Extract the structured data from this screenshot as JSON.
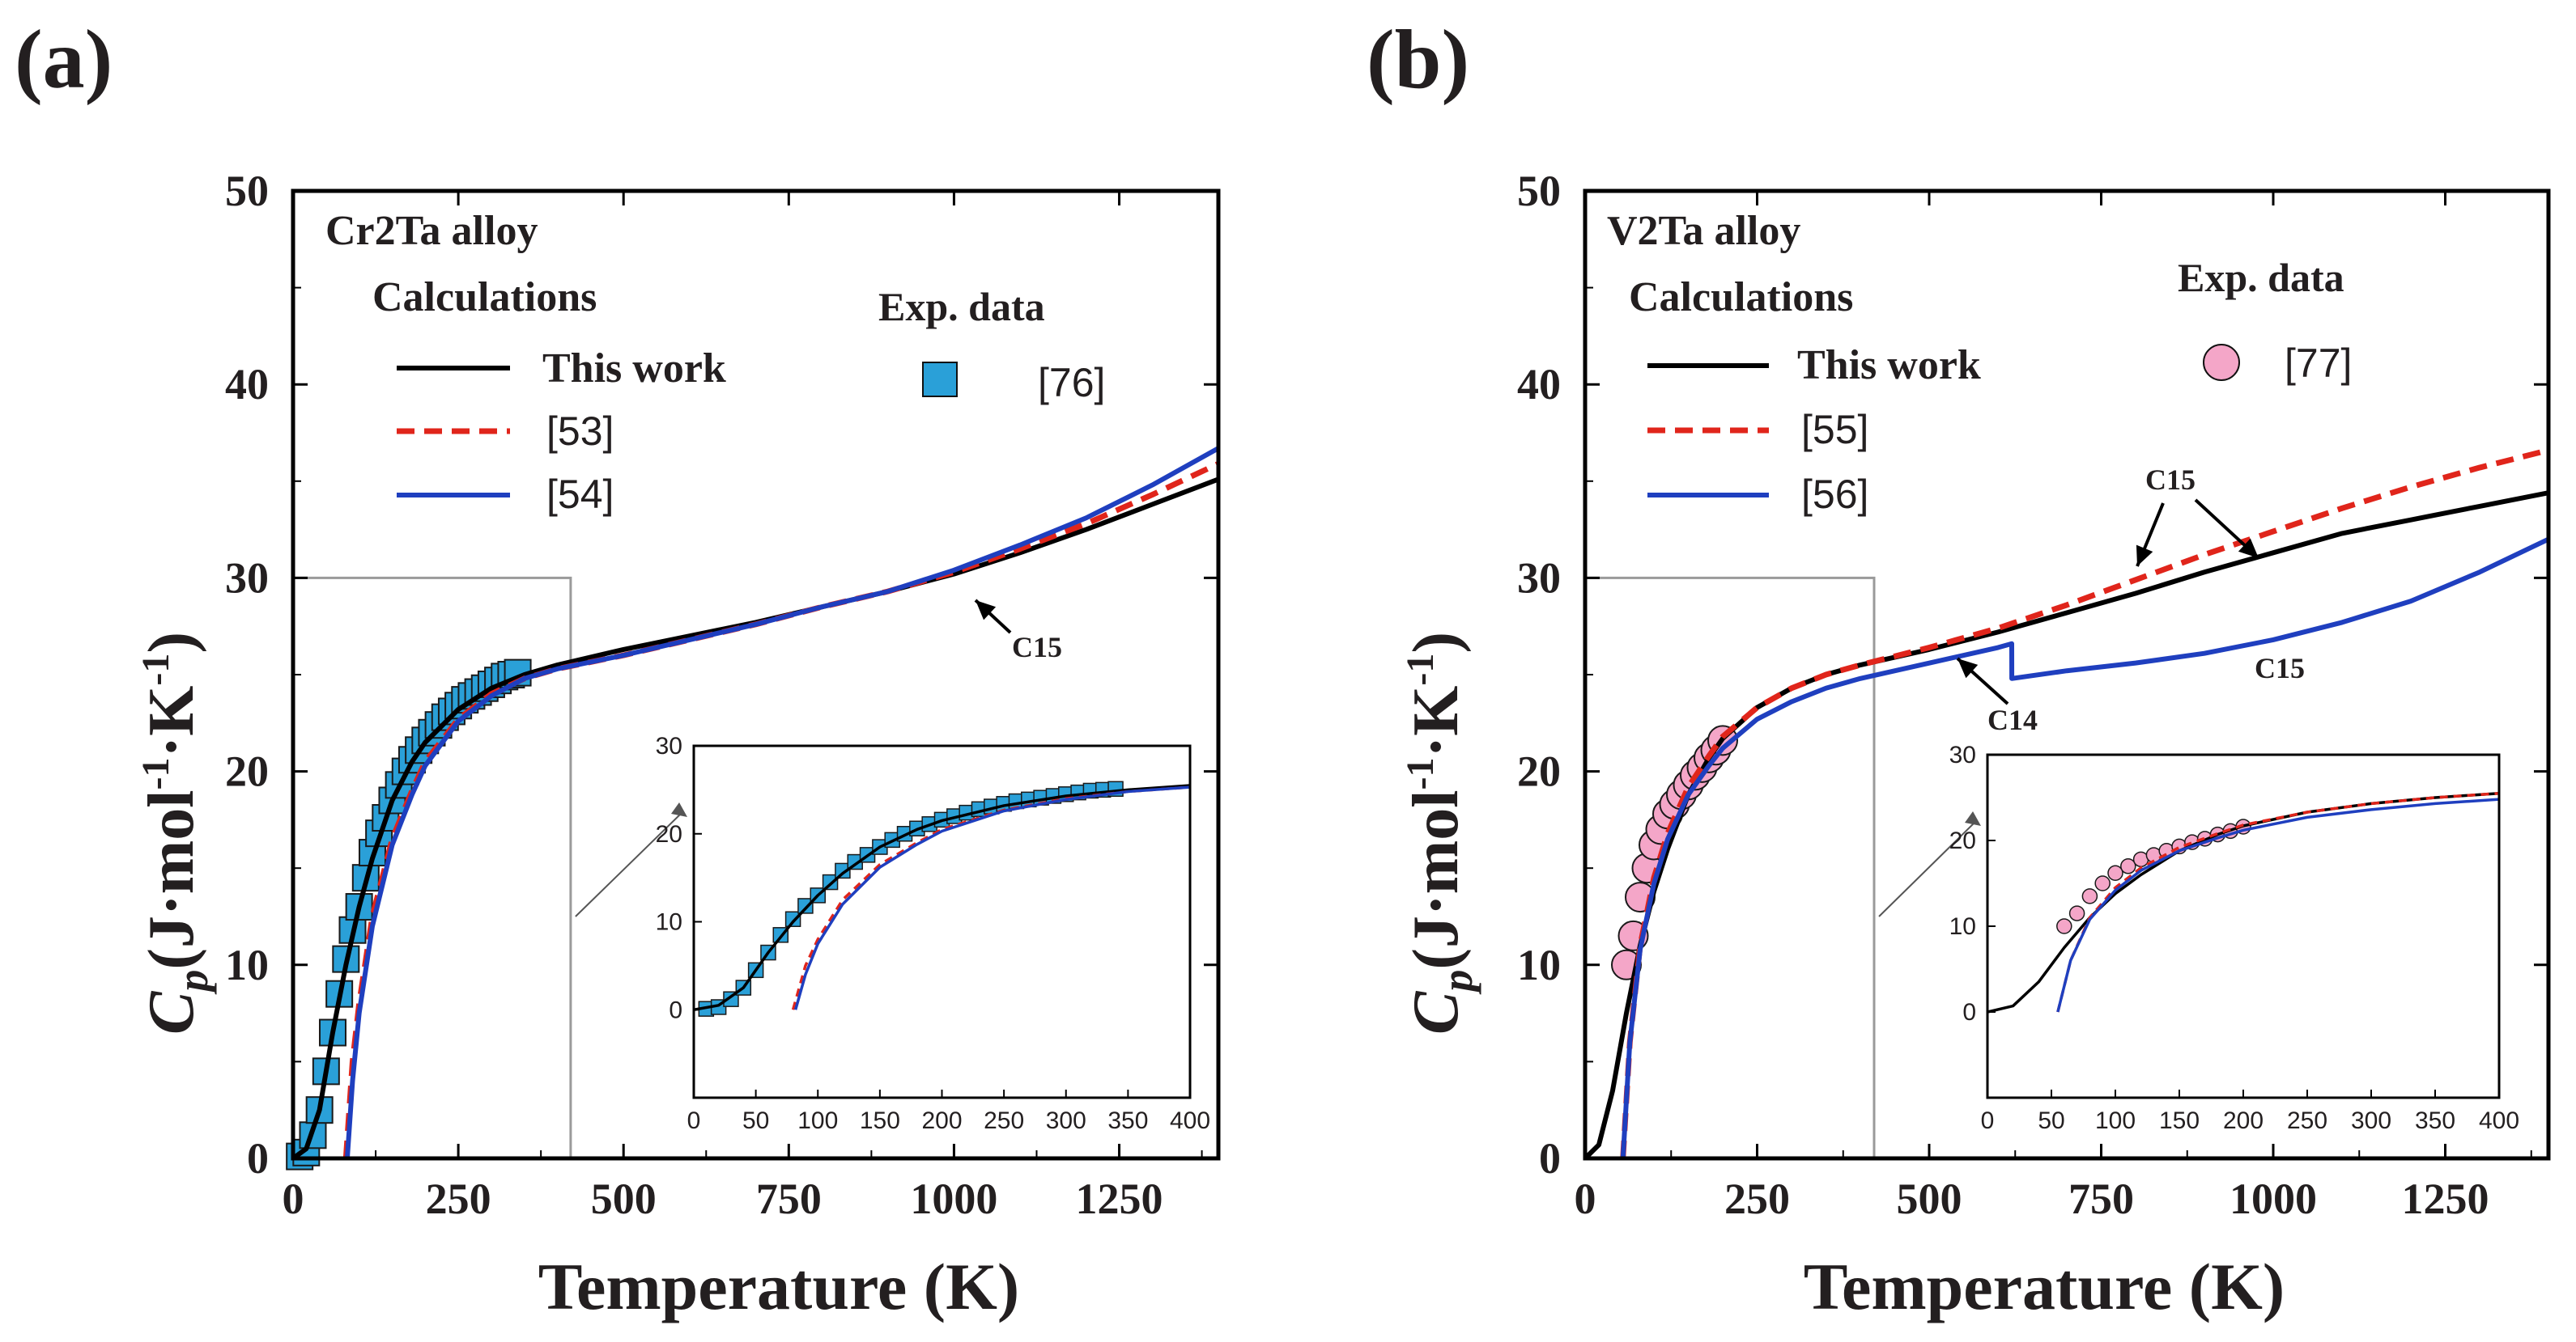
{
  "chart_data": [
    {
      "type": "line",
      "panel_label": "(a)",
      "title": "Cr2Ta alloy",
      "xlabel": "Temperature (K)",
      "ylabel_main": "C",
      "ylabel_sub": "p",
      "ylabel_units": "(J·mol",
      "ylabel_exp1": "-1",
      "ylabel_mid": "·K",
      "ylabel_exp2": "-1",
      "ylabel_close": ")",
      "xlim": [
        0,
        1400
      ],
      "ylim": [
        0,
        50
      ],
      "xticks": [
        "0",
        "250",
        "500",
        "750",
        "1000",
        "1250"
      ],
      "yticks": [
        "0",
        "10",
        "20",
        "30",
        "40",
        "50"
      ],
      "legend_header_calc": "Calculations",
      "legend_header_exp": "Exp. data",
      "series": [
        {
          "name": "This work",
          "color": "#000000",
          "style": "solid",
          "x": [
            0,
            20,
            40,
            60,
            80,
            100,
            120,
            150,
            180,
            200,
            250,
            300,
            350,
            400,
            500,
            600,
            700,
            800,
            900,
            1000,
            1100,
            1200,
            1300,
            1400
          ],
          "y": [
            0,
            0.5,
            2.5,
            6.5,
            10,
            13,
            15.5,
            18.5,
            20.5,
            21.5,
            23.2,
            24.3,
            25.0,
            25.5,
            26.3,
            27.0,
            27.7,
            28.5,
            29.3,
            30.2,
            31.3,
            32.5,
            33.8,
            35.1
          ]
        },
        {
          "name": "[53]",
          "color": "#e0251b",
          "style": "dash",
          "x": [
            80,
            90,
            100,
            120,
            150,
            180,
            200,
            250,
            300,
            350,
            400,
            500,
            600,
            700,
            800,
            900,
            1000,
            1100,
            1200,
            1300,
            1400
          ],
          "y": [
            0,
            5,
            8,
            12.5,
            16.5,
            19,
            20.5,
            22.7,
            24.0,
            24.8,
            25.3,
            26.0,
            26.8,
            27.6,
            28.5,
            29.3,
            30.3,
            31.5,
            32.8,
            34.3,
            35.9
          ]
        },
        {
          "name": "[54]",
          "color": "#1f3fbf",
          "style": "solid",
          "x": [
            82,
            90,
            100,
            120,
            150,
            180,
            200,
            250,
            300,
            350,
            400,
            500,
            600,
            700,
            800,
            900,
            1000,
            1100,
            1200,
            1300,
            1400
          ],
          "y": [
            0,
            4,
            7.5,
            12,
            16.2,
            18.8,
            20.3,
            22.6,
            23.9,
            24.8,
            25.3,
            26.0,
            26.8,
            27.6,
            28.5,
            29.3,
            30.4,
            31.7,
            33.1,
            34.8,
            36.7
          ]
        }
      ],
      "exp_series": {
        "name": "[76]",
        "marker": "square",
        "color": "#2aa0d8",
        "x": [
          10,
          20,
          30,
          40,
          50,
          60,
          70,
          80,
          90,
          100,
          110,
          120,
          130,
          140,
          150,
          160,
          170,
          180,
          190,
          200,
          210,
          220,
          230,
          240,
          250,
          260,
          270,
          280,
          290,
          300,
          310,
          320,
          330,
          340
        ],
        "y": [
          0.1,
          0.3,
          1.2,
          2.5,
          4.5,
          6.5,
          8.5,
          10.3,
          11.8,
          13.0,
          14.5,
          15.8,
          16.8,
          17.6,
          18.5,
          19.3,
          20.0,
          20.6,
          21.1,
          21.6,
          22.0,
          22.4,
          22.8,
          23.1,
          23.4,
          23.7,
          23.9,
          24.1,
          24.3,
          24.5,
          24.7,
          24.9,
          25.0,
          25.1
        ]
      },
      "annotations": [
        "C15"
      ],
      "inset": {
        "xlim": [
          0,
          400
        ],
        "ylim": [
          -10,
          30
        ],
        "xticks": [
          "0",
          "50",
          "100",
          "150",
          "200",
          "250",
          "300",
          "350",
          "400"
        ],
        "yticks": [
          "0",
          "10",
          "20",
          "30"
        ]
      },
      "zoom_box": {
        "xmax": 420,
        "ymax": 30
      }
    },
    {
      "type": "line",
      "panel_label": "(b)",
      "title": "V2Ta alloy",
      "xlabel": "Temperature (K)",
      "ylabel_main": "C",
      "ylabel_sub": "p",
      "ylabel_units": "(J·mol",
      "ylabel_exp1": "-1",
      "ylabel_mid": "·K",
      "ylabel_exp2": "-1",
      "ylabel_close": ")",
      "xlim": [
        0,
        1400
      ],
      "ylim": [
        0,
        50
      ],
      "xticks": [
        "0",
        "250",
        "500",
        "750",
        "1000",
        "1250"
      ],
      "yticks": [
        "0",
        "10",
        "20",
        "30",
        "40",
        "50"
      ],
      "legend_header_calc": "Calculations",
      "legend_header_exp": "Exp. data",
      "series": [
        {
          "name": "This work",
          "color": "#000000",
          "style": "solid",
          "x": [
            0,
            20,
            40,
            60,
            80,
            100,
            120,
            150,
            180,
            200,
            250,
            300,
            350,
            400,
            500,
            600,
            700,
            800,
            900,
            1000,
            1100,
            1200,
            1300,
            1400
          ],
          "y": [
            0,
            0.7,
            3.5,
            7.5,
            11,
            13.8,
            16,
            18.8,
            20.7,
            21.7,
            23.3,
            24.3,
            25.0,
            25.5,
            26.3,
            27.2,
            28.2,
            29.2,
            30.3,
            31.3,
            32.3,
            33.0,
            33.7,
            34.4
          ]
        },
        {
          "name": "[55]",
          "color": "#e0251b",
          "style": "dash",
          "x": [
            55,
            65,
            80,
            100,
            120,
            150,
            180,
            200,
            250,
            300,
            350,
            400,
            500,
            600,
            700,
            800,
            900,
            1000,
            1100,
            1200,
            1300,
            1400
          ],
          "y": [
            0,
            6,
            11,
            14.5,
            16.8,
            19.2,
            20.8,
            21.8,
            23.3,
            24.3,
            25.0,
            25.5,
            26.4,
            27.4,
            28.6,
            29.9,
            31.2,
            32.4,
            33.6,
            34.7,
            35.7,
            36.6
          ]
        },
        {
          "name": "[56]",
          "color": "#1f3fbf",
          "style": "solid",
          "x": [
            55,
            65,
            80,
            100,
            120,
            150,
            180,
            200,
            250,
            300,
            350,
            400,
            500,
            600,
            620,
            620.1,
            700,
            800,
            900,
            1000,
            1100,
            1200,
            1300,
            1400
          ],
          "y": [
            0,
            6,
            10.8,
            14.2,
            16.5,
            18.8,
            20.3,
            21.2,
            22.7,
            23.6,
            24.3,
            24.8,
            25.6,
            26.4,
            26.6,
            24.8,
            25.2,
            25.6,
            26.1,
            26.8,
            27.7,
            28.8,
            30.3,
            32.0
          ]
        }
      ],
      "exp_series": {
        "name": "[77]",
        "marker": "circle",
        "color": "#f4a6c8",
        "x": [
          60,
          70,
          80,
          90,
          100,
          110,
          120,
          130,
          140,
          150,
          160,
          170,
          180,
          190,
          200
        ],
        "y": [
          10.0,
          11.5,
          13.5,
          15.0,
          16.2,
          17.0,
          17.8,
          18.3,
          18.8,
          19.3,
          19.8,
          20.2,
          20.7,
          21.1,
          21.6
        ]
      },
      "annotations": [
        "C15",
        "C15",
        "C14"
      ],
      "inset": {
        "xlim": [
          0,
          400
        ],
        "ylim": [
          -10,
          30
        ],
        "xticks": [
          "0",
          "50",
          "100",
          "150",
          "200",
          "250",
          "300",
          "350",
          "400"
        ],
        "yticks": [
          "0",
          "10",
          "20",
          "30"
        ]
      },
      "zoom_box": {
        "xmax": 420,
        "ymax": 30
      }
    }
  ]
}
